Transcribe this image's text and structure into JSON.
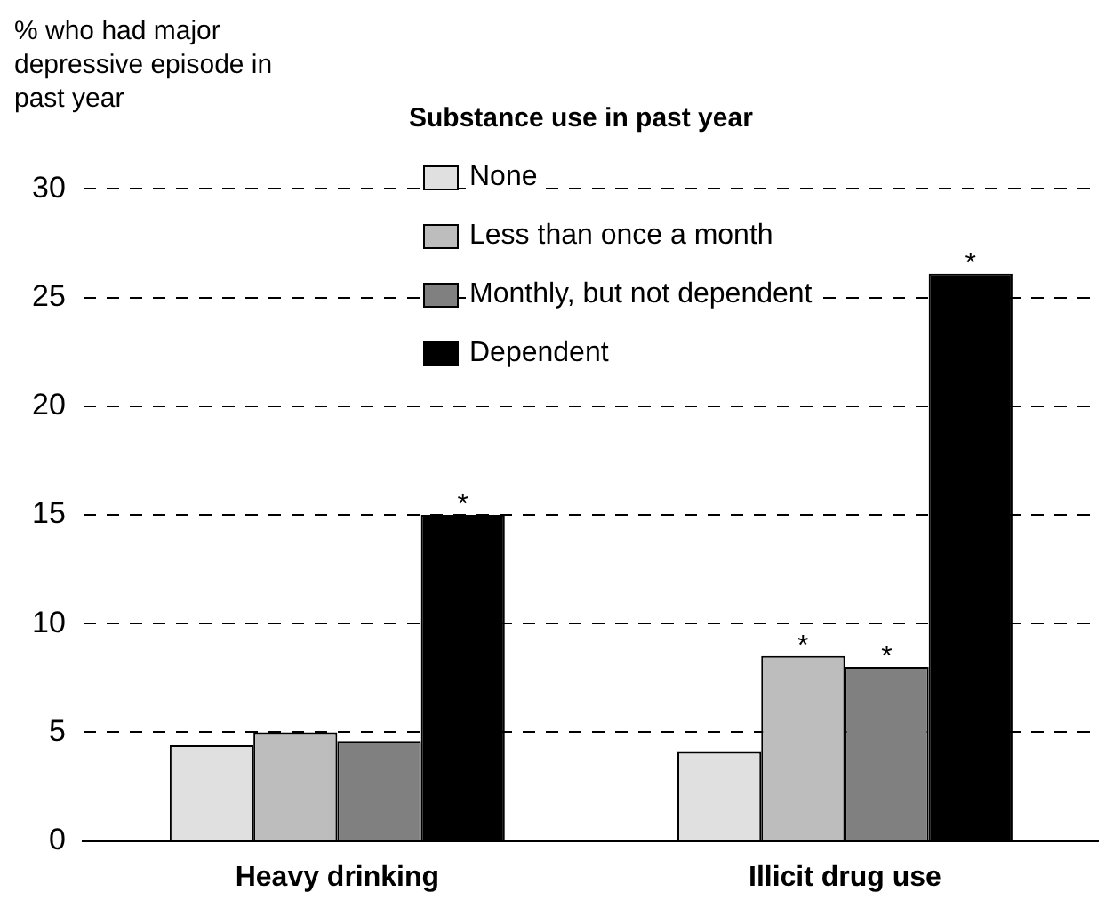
{
  "chart_data": {
    "type": "bar",
    "ylabel": "% who had major depressive episode in past year",
    "legend_title": "Substance use in past year",
    "categories": [
      "Heavy drinking",
      "Illicit drug use"
    ],
    "series": [
      {
        "name": "None",
        "color": "#e0e0e0",
        "values": [
          4.4,
          4.1
        ]
      },
      {
        "name": "Less than once a month",
        "color": "#bdbdbd",
        "values": [
          5.0,
          8.5
        ],
        "value_labels": [
          null,
          "*"
        ]
      },
      {
        "name": "Monthly, but not dependent",
        "color": "#808080",
        "values": [
          4.6,
          8.0
        ],
        "value_labels": [
          null,
          "*"
        ]
      },
      {
        "name": "Dependent",
        "color": "#000000",
        "values": [
          15.0,
          26.1
        ],
        "value_labels": [
          "*",
          "*"
        ]
      }
    ],
    "ylim": [
      0,
      30
    ],
    "yticks": [
      0,
      5,
      10,
      15,
      20,
      25,
      30
    ],
    "grid": "y",
    "legend": "top"
  }
}
